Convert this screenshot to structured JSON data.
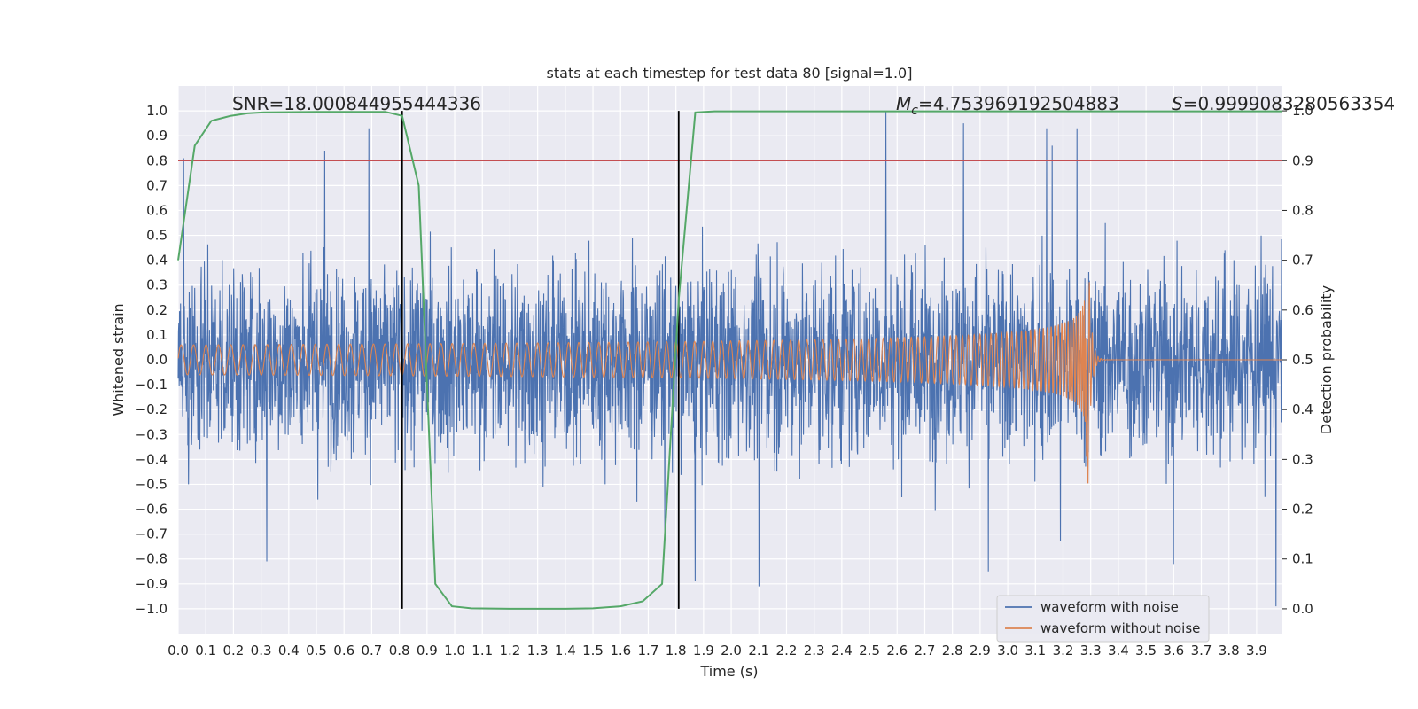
{
  "chart_data": {
    "type": "line",
    "title": "stats at each timestep for test data 80 [signal=1.0]",
    "xlabel": "Time (s)",
    "ylabel": "Whitened strain",
    "y2label": "Detection probability",
    "xlim": [
      0.0,
      3.99
    ],
    "ylim": [
      -1.1,
      1.1
    ],
    "y2lim": [
      -0.05,
      1.05
    ],
    "xticks": [
      "0.0",
      "0.1",
      "0.2",
      "0.3",
      "0.4",
      "0.5",
      "0.6",
      "0.7",
      "0.8",
      "0.9",
      "1.0",
      "1.1",
      "1.2",
      "1.3",
      "1.4",
      "1.5",
      "1.6",
      "1.7",
      "1.8",
      "1.9",
      "2.0",
      "2.1",
      "2.2",
      "2.3",
      "2.4",
      "2.5",
      "2.6",
      "2.7",
      "2.8",
      "2.9",
      "3.0",
      "3.1",
      "3.2",
      "3.3",
      "3.4",
      "3.5",
      "3.6",
      "3.7",
      "3.8",
      "3.9"
    ],
    "yticks": [
      "1.0",
      "0.9",
      "0.8",
      "0.7",
      "0.6",
      "0.5",
      "0.4",
      "0.3",
      "0.2",
      "0.1",
      "0.0",
      "−0.1",
      "−0.2",
      "−0.3",
      "−0.4",
      "−0.5",
      "−0.6",
      "−0.7",
      "−0.8",
      "−0.9",
      "−1.0"
    ],
    "y2ticks": [
      "1.0",
      "0.9",
      "0.8",
      "0.7",
      "0.6",
      "0.5",
      "0.4",
      "0.3",
      "0.2",
      "0.1",
      "0.0"
    ],
    "annotations": {
      "snr": "SNR=18.000844955444336",
      "mc_symbol": "M",
      "mc_sub": "c",
      "mc_value": "=4.753969192504883",
      "s_symbol": "S",
      "s_value": "=0.9999083280563354"
    },
    "threshold": 0.9,
    "vertical_lines": [
      0.81,
      1.81
    ],
    "series": [
      {
        "name": "waveform with noise",
        "color": "#4c72b0",
        "axis": "left",
        "kind": "noise",
        "amplitude_rms": 0.19,
        "spikes": [
          [
            0.02,
            0.81
          ],
          [
            0.32,
            -0.81
          ],
          [
            0.53,
            0.84
          ],
          [
            0.69,
            0.93
          ],
          [
            1.76,
            -0.71
          ],
          [
            1.87,
            -0.89
          ],
          [
            2.1,
            -0.91
          ],
          [
            2.56,
            1.0
          ],
          [
            2.84,
            0.95
          ],
          [
            2.93,
            -0.85
          ],
          [
            3.14,
            0.93
          ],
          [
            3.16,
            0.86
          ],
          [
            3.19,
            -0.73
          ],
          [
            3.25,
            0.93
          ],
          [
            3.6,
            -0.82
          ],
          [
            3.97,
            -0.99
          ]
        ]
      },
      {
        "name": "waveform without noise",
        "color": "#dd8452",
        "axis": "left",
        "kind": "chirp",
        "amplitude_start": 0.06,
        "amplitude_end": 0.39,
        "merger_time": 3.29,
        "min_value": -0.52
      },
      {
        "name": "detection probability",
        "color": "#55a868",
        "axis": "right",
        "x": [
          0.0,
          0.06,
          0.12,
          0.19,
          0.25,
          0.31,
          0.5,
          0.75,
          0.81,
          0.87,
          0.93,
          0.99,
          1.06,
          1.2,
          1.4,
          1.5,
          1.6,
          1.68,
          1.75,
          1.81,
          1.87,
          1.94,
          2.0,
          2.5,
          3.0,
          3.5,
          3.99
        ],
        "y": [
          0.7,
          0.93,
          0.98,
          0.99,
          0.995,
          0.997,
          0.998,
          0.998,
          0.99,
          0.85,
          0.05,
          0.005,
          0.001,
          0.0,
          0.0,
          0.001,
          0.005,
          0.015,
          0.05,
          0.62,
          0.997,
          0.999,
          0.999,
          0.999,
          0.999,
          0.999,
          0.999
        ]
      }
    ],
    "legend": [
      "waveform with noise",
      "waveform without noise"
    ],
    "legend_position": "lower-right",
    "colors": {
      "background": "#eaeaf2",
      "grid": "#ffffff",
      "threshold": "#c44e52",
      "vline": "#000000"
    }
  }
}
